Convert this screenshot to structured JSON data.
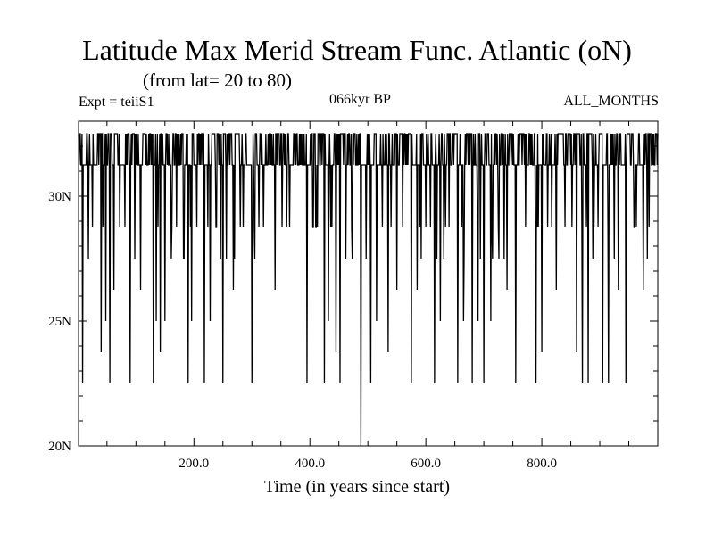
{
  "header": {
    "title": "Latitude Max Merid Stream Func. Atlantic (oN)",
    "subtitle": "(from lat= 20 to 80)",
    "experiment": "Expt = teiiS1",
    "period": "066kyr BP",
    "months": "ALL_MONTHS"
  },
  "chart_data": {
    "type": "line",
    "title": "Latitude Max Merid Stream Func. Atlantic (oN)",
    "subtitle": "(from lat= 20 to 80)",
    "xlabel": "Time (in years since start)",
    "ylabel": "",
    "xlim": [
      1,
      1000
    ],
    "ylim": [
      20,
      33
    ],
    "x_ticks": [
      {
        "value": 200,
        "label": "200.0"
      },
      {
        "value": 400,
        "label": "400.0"
      },
      {
        "value": 600,
        "label": "600.0"
      },
      {
        "value": 800,
        "label": "800.0"
      }
    ],
    "y_ticks": [
      {
        "value": 20,
        "label": "20N"
      },
      {
        "value": 25,
        "label": "25N"
      },
      {
        "value": 30,
        "label": "30N"
      }
    ],
    "levels": [
      32.5,
      31.25,
      28.75,
      27.5,
      26.25,
      25,
      23.75,
      22.5
    ],
    "baseline": 31.25,
    "dips": [
      [
        8,
        22.5
      ],
      [
        18,
        27.5
      ],
      [
        25,
        28.75
      ],
      [
        40,
        23.75
      ],
      [
        48,
        25
      ],
      [
        55,
        22.5
      ],
      [
        62,
        26.25
      ],
      [
        72,
        28.75
      ],
      [
        90,
        22.5
      ],
      [
        108,
        26.25
      ],
      [
        130,
        22.5
      ],
      [
        135,
        25
      ],
      [
        142,
        23.75
      ],
      [
        150,
        25
      ],
      [
        170,
        28.75
      ],
      [
        190,
        22.5
      ],
      [
        196,
        25
      ],
      [
        205,
        28.75
      ],
      [
        218,
        22.5
      ],
      [
        228,
        25
      ],
      [
        238,
        28.75
      ],
      [
        250,
        22.5
      ],
      [
        268,
        26.25
      ],
      [
        280,
        28.75
      ],
      [
        300,
        22.5
      ],
      [
        320,
        28.75
      ],
      [
        340,
        26.25
      ],
      [
        360,
        28.75
      ],
      [
        395,
        22.5
      ],
      [
        410,
        28.75
      ],
      [
        425,
        22.5
      ],
      [
        432,
        25
      ],
      [
        445,
        23.75
      ],
      [
        452,
        22.5
      ],
      [
        462,
        27.5
      ],
      [
        472,
        28.75
      ],
      [
        488,
        20
      ],
      [
        505,
        22.5
      ],
      [
        515,
        25
      ],
      [
        525,
        28.75
      ],
      [
        535,
        23.75
      ],
      [
        550,
        26.25
      ],
      [
        560,
        28.75
      ],
      [
        575,
        22.5
      ],
      [
        585,
        26.25
      ],
      [
        600,
        28.75
      ],
      [
        615,
        22.5
      ],
      [
        625,
        25
      ],
      [
        640,
        28.75
      ],
      [
        655,
        22.5
      ],
      [
        665,
        25
      ],
      [
        680,
        22.5
      ],
      [
        690,
        25
      ],
      [
        700,
        22.5
      ],
      [
        712,
        25
      ],
      [
        725,
        28.75
      ],
      [
        740,
        26.25
      ],
      [
        755,
        22.5
      ],
      [
        772,
        28.75
      ],
      [
        790,
        22.5
      ],
      [
        800,
        23.75
      ],
      [
        810,
        28.75
      ],
      [
        825,
        26.25
      ],
      [
        840,
        28.75
      ],
      [
        860,
        23.75
      ],
      [
        870,
        22.5
      ],
      [
        880,
        22.5
      ],
      [
        890,
        28.75
      ],
      [
        905,
        22.5
      ],
      [
        915,
        22.5
      ],
      [
        925,
        27.5
      ],
      [
        932,
        26.25
      ],
      [
        945,
        22.5
      ],
      [
        960,
        28.75
      ],
      [
        975,
        26.25
      ],
      [
        985,
        28.75
      ]
    ],
    "grid": false,
    "legend": "none"
  }
}
